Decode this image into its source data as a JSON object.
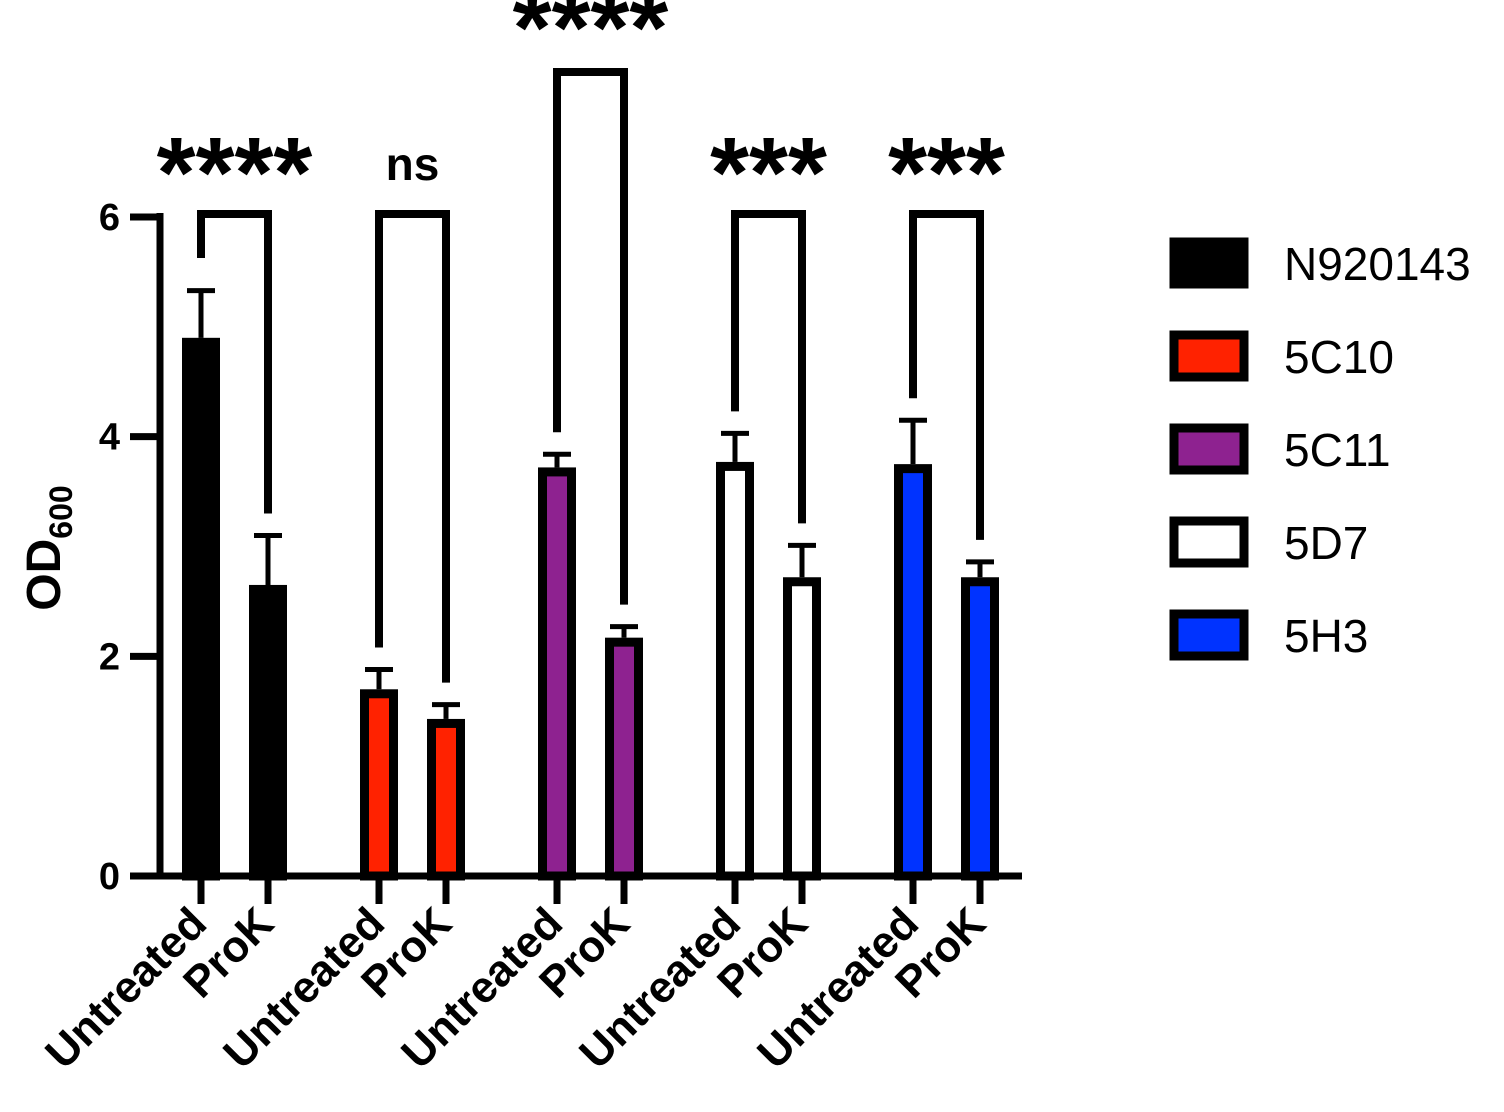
{
  "chart_data": {
    "type": "bar",
    "title": "",
    "xlabel": "",
    "ylabel": "OD",
    "ylabel_subscript": "600",
    "ylim": [
      0,
      6
    ],
    "yticks": [
      0,
      2,
      4,
      6
    ],
    "yticks_text": [
      "0",
      "2",
      "4",
      "6"
    ],
    "categories": [
      "Untreated",
      "ProK"
    ],
    "series": [
      {
        "name": "N920143",
        "color": "#000000",
        "values": [
          4.9,
          2.65
        ],
        "errors": [
          0.43,
          0.45
        ]
      },
      {
        "name": "5C10",
        "color": "#ff2200",
        "values": [
          1.7,
          1.43
        ],
        "errors": [
          0.18,
          0.13
        ]
      },
      {
        "name": "5C11",
        "color": "#8e2290",
        "values": [
          3.72,
          2.17
        ],
        "errors": [
          0.12,
          0.1
        ]
      },
      {
        "name": "5D7",
        "color": "#ffffff",
        "values": [
          3.77,
          2.72
        ],
        "errors": [
          0.26,
          0.29
        ]
      },
      {
        "name": "5H3",
        "color": "#0033ff",
        "values": [
          3.75,
          2.72
        ],
        "errors": [
          0.4,
          0.14
        ]
      }
    ],
    "significance": [
      "****",
      "ns",
      "****",
      "***",
      "***"
    ],
    "legend_position": "right"
  }
}
